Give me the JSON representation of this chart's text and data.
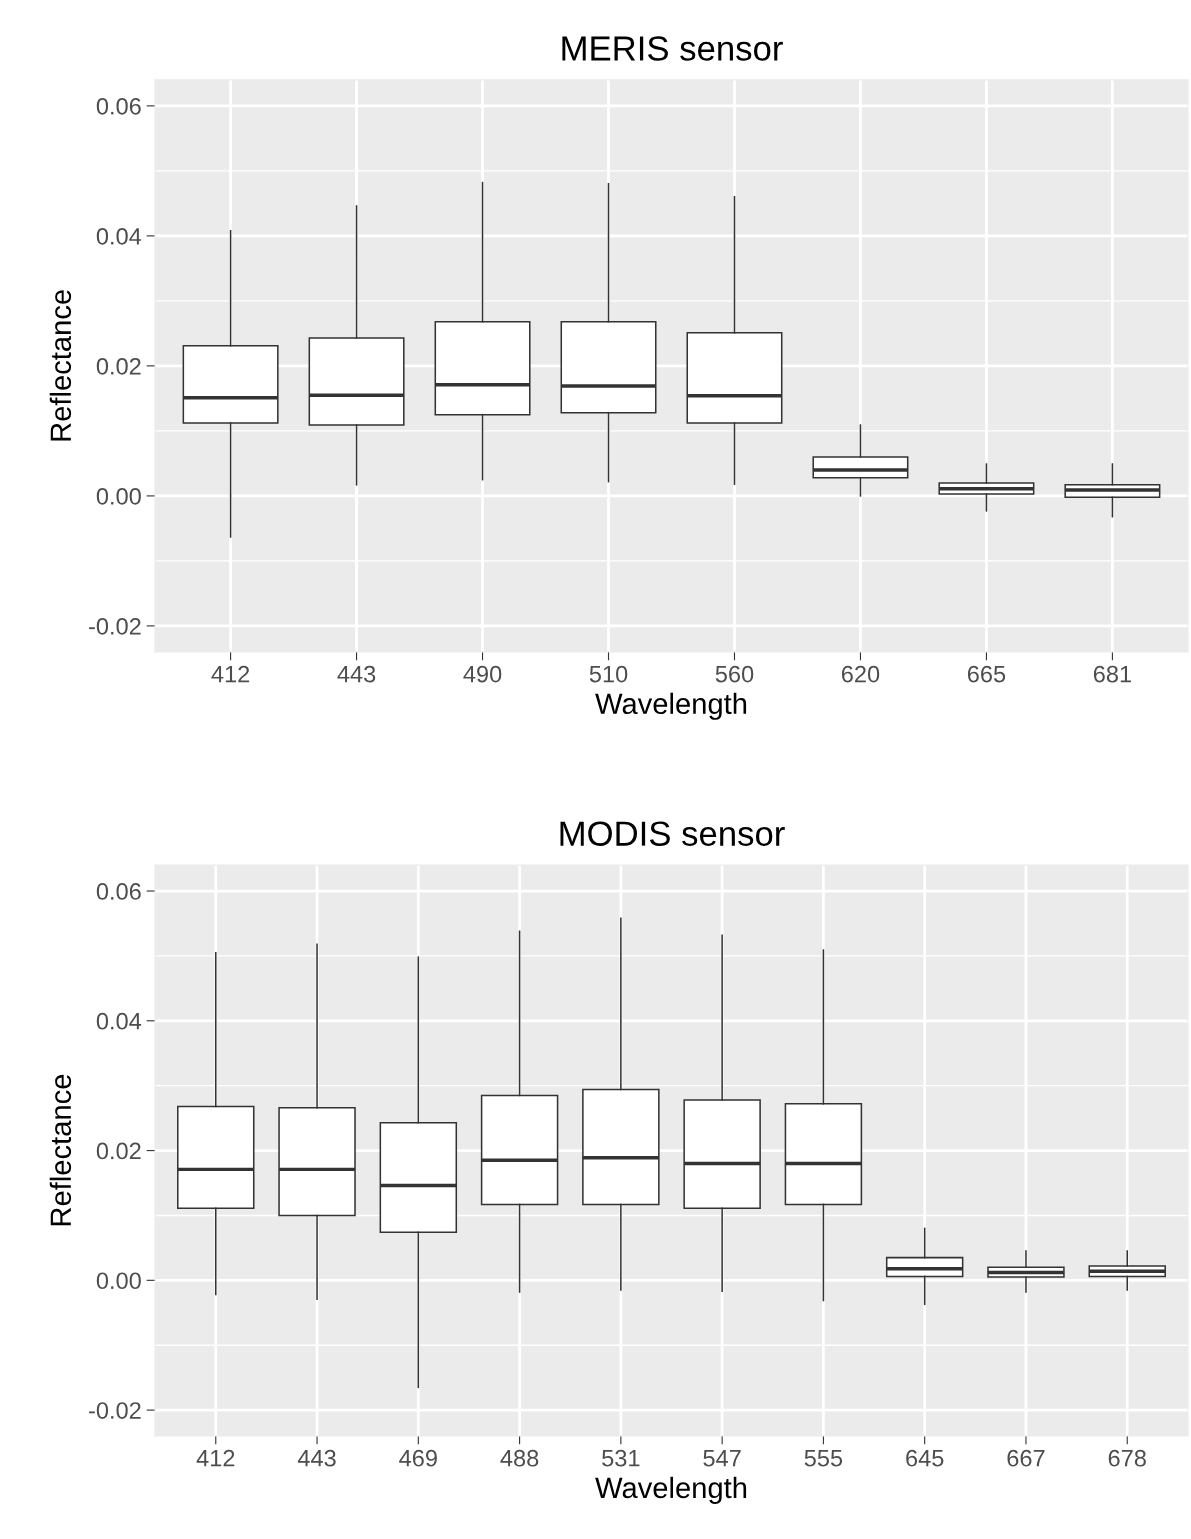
{
  "chart_data": [
    {
      "type": "box",
      "title": "MERIS sensor",
      "xlabel": "Wavelength",
      "ylabel": "Reflectance",
      "categories": [
        "412",
        "443",
        "490",
        "510",
        "560",
        "620",
        "665",
        "681"
      ],
      "boxes": [
        {
          "low": -0.0063,
          "q1": 0.0112,
          "median": 0.0151,
          "q3": 0.0231,
          "high": 0.0408
        },
        {
          "low": 0.0017,
          "q1": 0.0109,
          "median": 0.0155,
          "q3": 0.0243,
          "high": 0.0446
        },
        {
          "low": 0.0025,
          "q1": 0.0125,
          "median": 0.0171,
          "q3": 0.0268,
          "high": 0.0482
        },
        {
          "low": 0.0022,
          "q1": 0.0128,
          "median": 0.0169,
          "q3": 0.0268,
          "high": 0.048
        },
        {
          "low": 0.0018,
          "q1": 0.0112,
          "median": 0.0154,
          "q3": 0.0251,
          "high": 0.046
        },
        {
          "low": 0.0,
          "q1": 0.0028,
          "median": 0.004,
          "q3": 0.006,
          "high": 0.0109
        },
        {
          "low": -0.0023,
          "q1": 0.0003,
          "median": 0.0011,
          "q3": 0.002,
          "high": 0.0049
        },
        {
          "low": -0.0032,
          "q1": -0.0002,
          "median": 0.0009,
          "q3": 0.0017,
          "high": 0.0049
        }
      ],
      "ylim": [
        -0.024,
        0.064
      ],
      "yticks": [
        {
          "value": -0.02,
          "label": "-0.02"
        },
        {
          "value": 0,
          "label": "0.00"
        },
        {
          "value": 0.02,
          "label": "0.02"
        },
        {
          "value": 0.04,
          "label": "0.04"
        },
        {
          "value": 0.06,
          "label": "0.06"
        }
      ],
      "grid": true
    },
    {
      "type": "box",
      "title": "MODIS sensor",
      "xlabel": "Wavelength",
      "ylabel": "Reflectance",
      "categories": [
        "412",
        "443",
        "469",
        "488",
        "531",
        "547",
        "555",
        "645",
        "667",
        "678"
      ],
      "boxes": [
        {
          "low": -0.0022,
          "q1": 0.0111,
          "median": 0.0171,
          "q3": 0.0268,
          "high": 0.0505
        },
        {
          "low": -0.0029,
          "q1": 0.01,
          "median": 0.0171,
          "q3": 0.0266,
          "high": 0.0518
        },
        {
          "low": -0.0165,
          "q1": 0.0074,
          "median": 0.0146,
          "q3": 0.0243,
          "high": 0.0498
        },
        {
          "low": -0.0018,
          "q1": 0.0117,
          "median": 0.0185,
          "q3": 0.0285,
          "high": 0.0538
        },
        {
          "low": -0.0015,
          "q1": 0.0117,
          "median": 0.0189,
          "q3": 0.0294,
          "high": 0.0558
        },
        {
          "low": -0.0017,
          "q1": 0.0111,
          "median": 0.018,
          "q3": 0.0278,
          "high": 0.0532
        },
        {
          "low": -0.0031,
          "q1": 0.0117,
          "median": 0.018,
          "q3": 0.0272,
          "high": 0.0509
        },
        {
          "low": -0.0037,
          "q1": 0.0006,
          "median": 0.0018,
          "q3": 0.0035,
          "high": 0.008
        },
        {
          "low": -0.0018,
          "q1": 0.0005,
          "median": 0.0012,
          "q3": 0.002,
          "high": 0.0045
        },
        {
          "low": -0.0015,
          "q1": 0.0006,
          "median": 0.0014,
          "q3": 0.0022,
          "high": 0.0045
        }
      ],
      "ylim": [
        -0.024,
        0.064
      ],
      "yticks": [
        {
          "value": -0.02,
          "label": "-0.02"
        },
        {
          "value": 0,
          "label": "0.00"
        },
        {
          "value": 0.02,
          "label": "0.02"
        },
        {
          "value": 0.04,
          "label": "0.04"
        },
        {
          "value": 0.06,
          "label": "0.06"
        }
      ],
      "grid": true
    }
  ]
}
